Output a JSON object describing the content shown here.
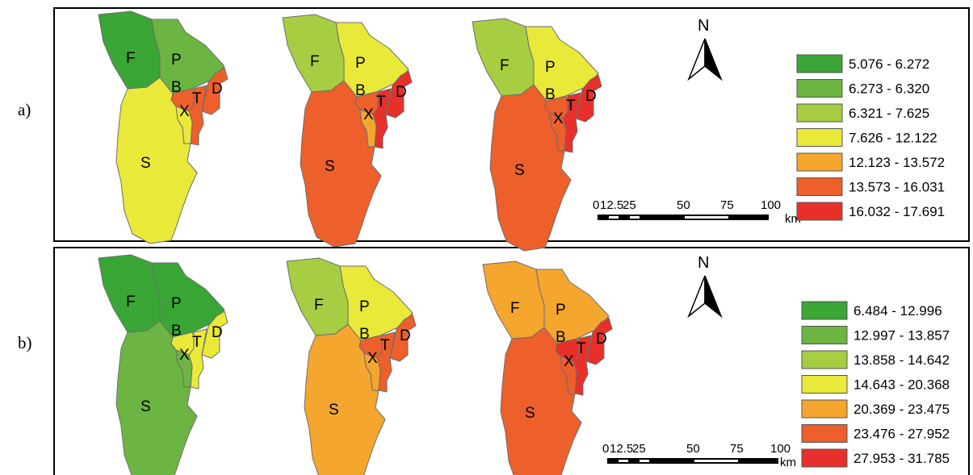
{
  "panel_labels": [
    "a)",
    "b)"
  ],
  "region_names": [
    "F",
    "P",
    "B",
    "D",
    "T",
    "X",
    "S"
  ],
  "north_label": "N",
  "scale_ticks": [
    "0",
    "12.5",
    "25",
    "50",
    "75",
    "100"
  ],
  "scale_unit": "km",
  "rows": [
    {
      "legend": [
        {
          "label": "5.076 - 6.272",
          "color": "#3aa635"
        },
        {
          "label": "6.273 - 6.320",
          "color": "#6cb543"
        },
        {
          "label": "6.321 - 7.625",
          "color": "#a7cd42"
        },
        {
          "label": "7.626 - 12.122",
          "color": "#e9e939"
        },
        {
          "label": "12.123 - 13.572",
          "color": "#f4a62e"
        },
        {
          "label": "13.573 - 16.031",
          "color": "#ed5f2b"
        },
        {
          "label": "16.032 - 17.691",
          "color": "#e8302a"
        }
      ],
      "maps": [
        {
          "F": "#3aa635",
          "P": "#6cb543",
          "B": "#ed5f2b",
          "D": "#ed5f2b",
          "T": "#ed5f2b",
          "X": "#e9e939",
          "S": "#e9e939"
        },
        {
          "F": "#a7cd42",
          "P": "#e9e939",
          "B": "#ed5f2b",
          "D": "#e8302a",
          "T": "#e8302a",
          "X": "#f4a62e",
          "S": "#ed5f2b"
        },
        {
          "F": "#a7cd42",
          "P": "#e9e939",
          "B": "#ed5f2b",
          "D": "#e8302a",
          "T": "#e8302a",
          "X": "#ed5f2b",
          "S": "#ed5f2b"
        }
      ]
    },
    {
      "legend": [
        {
          "label": "6.484 - 12.996",
          "color": "#3aa635"
        },
        {
          "label": "12.997 - 13.857",
          "color": "#6cb543"
        },
        {
          "label": "13.858 - 14.642",
          "color": "#a7cd42"
        },
        {
          "label": "14.643 - 20.368",
          "color": "#e9e939"
        },
        {
          "label": "20.369 - 23.475",
          "color": "#f4a62e"
        },
        {
          "label": "23.476 - 27.952",
          "color": "#ed5f2b"
        },
        {
          "label": "27.953 - 31.785",
          "color": "#e8302a"
        }
      ],
      "maps": [
        {
          "F": "#3aa635",
          "P": "#3aa635",
          "B": "#e9e939",
          "D": "#e9e939",
          "T": "#e9e939",
          "X": "#6cb543",
          "S": "#6cb543"
        },
        {
          "F": "#a7cd42",
          "P": "#e9e939",
          "B": "#ed5f2b",
          "D": "#ed5f2b",
          "T": "#ed5f2b",
          "X": "#f4a62e",
          "S": "#f4a62e"
        },
        {
          "F": "#f4a62e",
          "P": "#f4a62e",
          "B": "#e8302a",
          "D": "#e8302a",
          "T": "#e8302a",
          "X": "#ed5f2b",
          "S": "#ed5f2b"
        }
      ]
    }
  ]
}
